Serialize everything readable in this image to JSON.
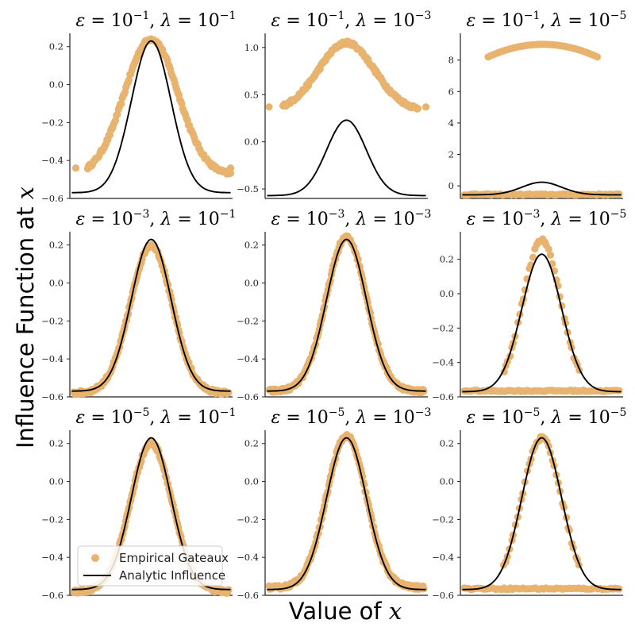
{
  "colors": {
    "empirical": "#E8B36E",
    "analytic": "#000000",
    "axis": "#222222"
  },
  "figure": {
    "ylabel_prefix": "Influence Function at ",
    "ylabel_var": "x",
    "xlabel_prefix": "Value of ",
    "xlabel_var": "x"
  },
  "legend": {
    "location": "lower-left of bottom-left panel",
    "entries": [
      {
        "label": "Empirical Gateaux",
        "kind": "marker"
      },
      {
        "label": "Analytic Influence",
        "kind": "line"
      }
    ]
  },
  "chart_data": {
    "type": "scatter",
    "grid": false,
    "analytic_curve": {
      "form": "gaussian",
      "x_range": [
        -4,
        4
      ],
      "peak": 0.23,
      "baseline": -0.57,
      "sigma": 1.0
    },
    "panels": [
      {
        "id": "p00",
        "eps_exp": "-1",
        "lam_exp": "-1",
        "ylim": [
          -0.6,
          0.27
        ],
        "yticks": [
          -0.6,
          -0.4,
          -0.2,
          0.0,
          0.2
        ],
        "ytick_labels": [
          "−0.6",
          "−0.4",
          "−0.2",
          "0.0",
          "0.2"
        ],
        "empirical": {
          "kind": "wide-gauss",
          "peak": 0.24,
          "baseline": -0.48,
          "sigma": 1.35,
          "x_range": [
            -3.2,
            4.0
          ],
          "isolated": [
            [
              -3.8,
              -0.44
            ],
            [
              4.0,
              -0.44
            ]
          ]
        }
      },
      {
        "id": "p01",
        "eps_exp": "-1",
        "lam_exp": "-3",
        "ylim": [
          -0.6,
          1.15
        ],
        "yticks": [
          -0.5,
          0.0,
          0.5,
          1.0
        ],
        "ytick_labels": [
          "−0.5",
          "0.0",
          "0.5",
          "1.0"
        ],
        "empirical": {
          "kind": "wide-gauss",
          "peak": 1.05,
          "baseline": 0.33,
          "sigma": 1.4,
          "x_range": [
            -3.2,
            3.6
          ],
          "isolated": [
            [
              -3.9,
              0.37
            ],
            [
              4.0,
              0.37
            ]
          ]
        }
      },
      {
        "id": "p02",
        "eps_exp": "-1",
        "lam_exp": "-5",
        "ylim": [
          -0.8,
          9.7
        ],
        "yticks": [
          0,
          2,
          4,
          6,
          8
        ],
        "ytick_labels": [
          "0",
          "2",
          "4",
          "6",
          "8"
        ],
        "empirical": {
          "kind": "arch-flat",
          "arch_peak": 9.0,
          "arch_base": 8.2,
          "arch_range": [
            -2.7,
            2.8
          ],
          "flat_y": -0.55
        }
      },
      {
        "id": "p10",
        "eps_exp": "-3",
        "lam_exp": "-1",
        "ylim": [
          -0.6,
          0.27
        ],
        "yticks": [
          -0.6,
          -0.4,
          -0.2,
          0.0,
          0.2
        ],
        "ytick_labels": [
          "−0.6",
          "−0.4",
          "−0.2",
          "0.0",
          "0.2"
        ],
        "empirical": {
          "kind": "match",
          "peak": 0.2,
          "baseline": -0.58,
          "sigma": 1.05
        }
      },
      {
        "id": "p11",
        "eps_exp": "-3",
        "lam_exp": "-3",
        "ylim": [
          -0.6,
          0.27
        ],
        "yticks": [
          -0.6,
          -0.4,
          -0.2,
          0.0,
          0.2
        ],
        "ytick_labels": [
          "−0.6",
          "−0.4",
          "−0.2",
          "0.0",
          "0.2"
        ],
        "empirical": {
          "kind": "match",
          "peak": 0.24,
          "baseline": -0.57,
          "sigma": 1.02
        }
      },
      {
        "id": "p12",
        "eps_exp": "-3",
        "lam_exp": "-5",
        "ylim": [
          -0.6,
          0.36
        ],
        "yticks": [
          -0.6,
          -0.4,
          -0.2,
          0.0,
          0.2
        ],
        "ytick_labels": [
          "−0.6",
          "−0.4",
          "−0.2",
          "0.0",
          "0.2"
        ],
        "empirical": {
          "kind": "sparse-peak",
          "peak": 0.31,
          "baseline": -0.57,
          "sigma": 0.95,
          "flat_y": -0.565
        }
      },
      {
        "id": "p20",
        "eps_exp": "-5",
        "lam_exp": "-1",
        "ylim": [
          -0.6,
          0.27
        ],
        "yticks": [
          -0.6,
          -0.4,
          -0.2,
          0.0,
          0.2
        ],
        "ytick_labels": [
          "−0.6",
          "−0.4",
          "−0.2",
          "0.0",
          "0.2"
        ],
        "empirical": {
          "kind": "match",
          "peak": 0.2,
          "baseline": -0.58,
          "sigma": 1.05
        }
      },
      {
        "id": "p21",
        "eps_exp": "-5",
        "lam_exp": "-3",
        "ylim": [
          -0.6,
          0.27
        ],
        "yticks": [
          -0.6,
          -0.4,
          -0.2,
          0.0,
          0.2
        ],
        "ytick_labels": [
          "−0.6",
          "−0.4",
          "−0.2",
          "0.0",
          "0.2"
        ],
        "empirical": {
          "kind": "match",
          "peak": 0.24,
          "baseline": -0.56,
          "sigma": 1.0
        }
      },
      {
        "id": "p22",
        "eps_exp": "-5",
        "lam_exp": "-5",
        "ylim": [
          -0.6,
          0.27
        ],
        "yticks": [
          -0.6,
          -0.4,
          -0.2,
          0.0,
          0.2
        ],
        "ytick_labels": [
          "−0.6",
          "−0.4",
          "−0.2",
          "0.0",
          "0.2"
        ],
        "empirical": {
          "kind": "sparse-peak",
          "peak": 0.23,
          "baseline": -0.57,
          "sigma": 1.0,
          "flat_y": -0.565
        }
      }
    ]
  }
}
